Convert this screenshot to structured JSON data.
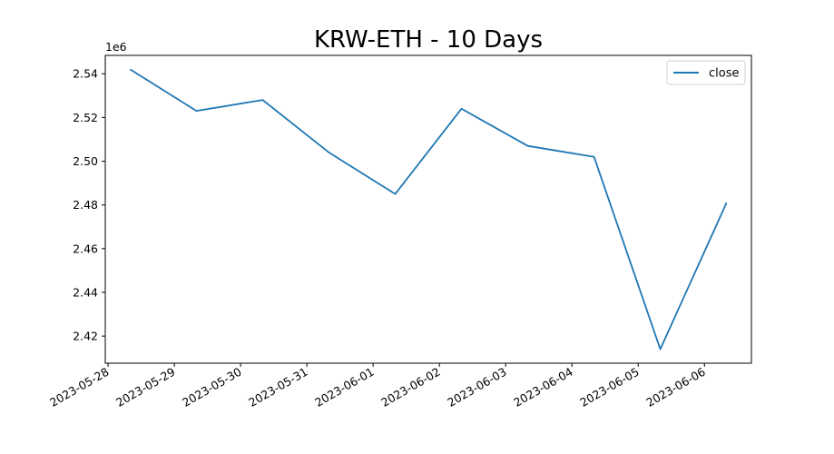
{
  "chart_data": {
    "type": "line",
    "title": "KRW-ETH - 10 Days",
    "xlabel": "",
    "ylabel": "",
    "y_offset_label": "1e6",
    "y_scale": 1000000,
    "x": [
      "2023-05-28 08:00",
      "2023-05-29 08:00",
      "2023-05-30 08:00",
      "2023-05-31 08:00",
      "2023-06-01 08:00",
      "2023-06-02 08:00",
      "2023-06-03 08:00",
      "2023-06-04 08:00",
      "2023-06-05 08:00",
      "2023-06-06 08:00"
    ],
    "series": [
      {
        "name": "close",
        "color": "#1f77b4",
        "values": [
          2542000,
          2523000,
          2528000,
          2504000,
          2485000,
          2524000,
          2507000,
          2502000,
          2414000,
          2481000
        ]
      }
    ],
    "x_ticks": [
      "2023-05-28",
      "2023-05-29",
      "2023-05-30",
      "2023-05-31",
      "2023-06-01",
      "2023-06-02",
      "2023-06-03",
      "2023-06-04",
      "2023-06-05",
      "2023-06-06"
    ],
    "y_ticks": [
      "2.42",
      "2.44",
      "2.46",
      "2.48",
      "2.50",
      "2.52",
      "2.54"
    ],
    "xlim": [
      "2023-05-27 23:00",
      "2023-06-06 17:00"
    ],
    "ylim": [
      2407600,
      2548400
    ],
    "grid": false,
    "legend_position": "top-right"
  }
}
